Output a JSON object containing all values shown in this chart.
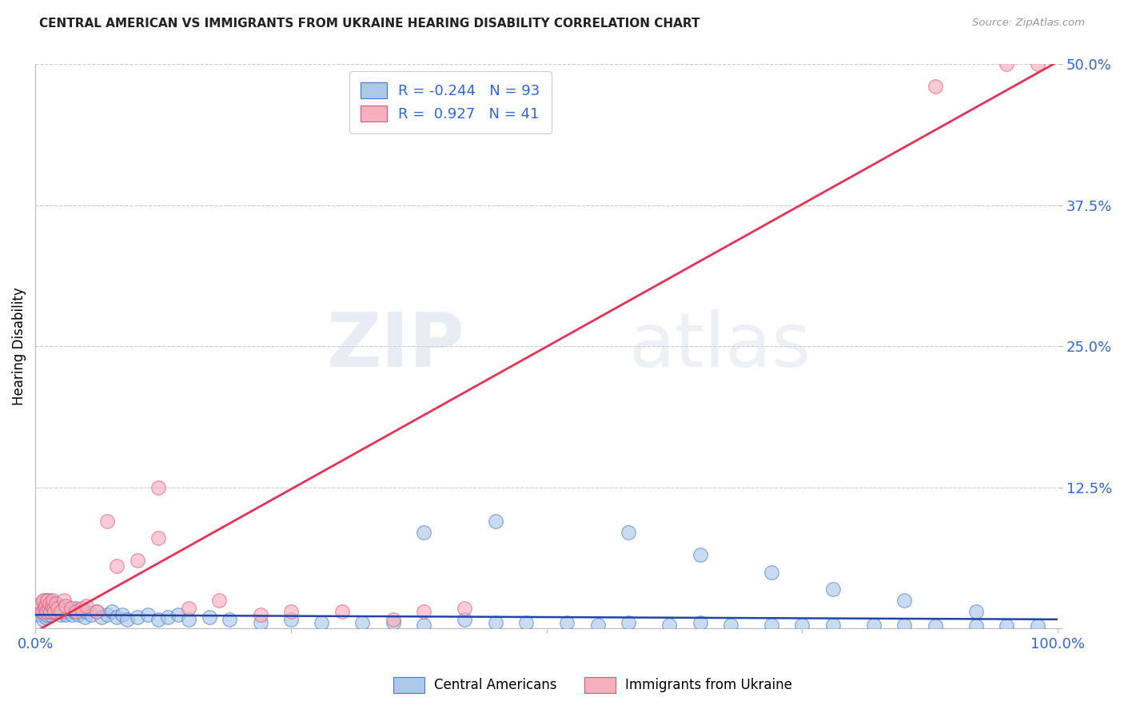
{
  "title": "CENTRAL AMERICAN VS IMMIGRANTS FROM UKRAINE HEARING DISABILITY CORRELATION CHART",
  "source": "Source: ZipAtlas.com",
  "ylabel": "Hearing Disability",
  "xlim": [
    0,
    1.0
  ],
  "ylim": [
    0,
    0.5
  ],
  "xticks": [
    0.0,
    0.25,
    0.5,
    0.75,
    1.0
  ],
  "xticklabels": [
    "0.0%",
    "",
    "",
    "",
    "100.0%"
  ],
  "yticks": [
    0.0,
    0.125,
    0.25,
    0.375,
    0.5
  ],
  "yticklabels": [
    "",
    "12.5%",
    "25.0%",
    "37.5%",
    "50.0%"
  ],
  "blue_R": -0.244,
  "blue_N": 93,
  "pink_R": 0.927,
  "pink_N": 41,
  "blue_color": "#adc8e8",
  "pink_color": "#f5b0c0",
  "blue_edge_color": "#4477cc",
  "pink_edge_color": "#e05575",
  "blue_line_color": "#2244aa",
  "pink_line_color": "#e03355",
  "legend_text_color": "#3366cc",
  "watermark_color": "#cdd8e8",
  "legend_label_blue": "Central Americans",
  "legend_label_pink": "Immigrants from Ukraine",
  "blue_line_slope": -0.004,
  "blue_line_intercept": 0.012,
  "pink_line_slope": 0.505,
  "pink_line_intercept": -0.003,
  "blue_points_x": [
    0.003,
    0.005,
    0.006,
    0.007,
    0.008,
    0.008,
    0.009,
    0.009,
    0.01,
    0.01,
    0.011,
    0.011,
    0.012,
    0.012,
    0.013,
    0.013,
    0.014,
    0.015,
    0.015,
    0.015,
    0.016,
    0.017,
    0.018,
    0.018,
    0.019,
    0.02,
    0.02,
    0.021,
    0.022,
    0.023,
    0.024,
    0.025,
    0.026,
    0.027,
    0.028,
    0.03,
    0.032,
    0.034,
    0.036,
    0.038,
    0.04,
    0.042,
    0.045,
    0.048,
    0.05,
    0.055,
    0.06,
    0.065,
    0.07,
    0.075,
    0.08,
    0.085,
    0.09,
    0.1,
    0.11,
    0.12,
    0.13,
    0.14,
    0.15,
    0.17,
    0.19,
    0.22,
    0.25,
    0.28,
    0.32,
    0.35,
    0.38,
    0.42,
    0.45,
    0.48,
    0.52,
    0.55,
    0.58,
    0.62,
    0.65,
    0.68,
    0.72,
    0.75,
    0.78,
    0.82,
    0.85,
    0.88,
    0.92,
    0.95,
    0.98,
    0.38,
    0.45,
    0.58,
    0.65,
    0.72,
    0.78,
    0.85,
    0.92
  ],
  "blue_points_y": [
    0.012,
    0.018,
    0.015,
    0.022,
    0.02,
    0.008,
    0.025,
    0.015,
    0.018,
    0.01,
    0.022,
    0.012,
    0.02,
    0.025,
    0.015,
    0.018,
    0.02,
    0.012,
    0.018,
    0.025,
    0.015,
    0.02,
    0.015,
    0.022,
    0.018,
    0.015,
    0.022,
    0.018,
    0.015,
    0.02,
    0.018,
    0.012,
    0.015,
    0.018,
    0.015,
    0.012,
    0.018,
    0.015,
    0.012,
    0.015,
    0.018,
    0.012,
    0.015,
    0.01,
    0.015,
    0.012,
    0.015,
    0.01,
    0.012,
    0.015,
    0.01,
    0.012,
    0.008,
    0.01,
    0.012,
    0.008,
    0.01,
    0.012,
    0.008,
    0.01,
    0.008,
    0.005,
    0.008,
    0.005,
    0.005,
    0.005,
    0.003,
    0.008,
    0.005,
    0.005,
    0.005,
    0.003,
    0.005,
    0.003,
    0.005,
    0.003,
    0.003,
    0.003,
    0.003,
    0.003,
    0.003,
    0.002,
    0.002,
    0.002,
    0.002,
    0.085,
    0.095,
    0.085,
    0.065,
    0.05,
    0.035,
    0.025,
    0.015
  ],
  "pink_points_x": [
    0.003,
    0.005,
    0.007,
    0.008,
    0.009,
    0.01,
    0.011,
    0.012,
    0.013,
    0.014,
    0.015,
    0.016,
    0.017,
    0.018,
    0.019,
    0.02,
    0.022,
    0.025,
    0.028,
    0.03,
    0.035,
    0.04,
    0.045,
    0.05,
    0.06,
    0.07,
    0.08,
    0.1,
    0.12,
    0.15,
    0.18,
    0.22,
    0.25,
    0.3,
    0.35,
    0.38,
    0.42,
    0.12,
    0.88,
    0.95,
    0.98
  ],
  "pink_points_y": [
    0.018,
    0.022,
    0.015,
    0.025,
    0.018,
    0.02,
    0.015,
    0.025,
    0.018,
    0.022,
    0.015,
    0.02,
    0.025,
    0.018,
    0.015,
    0.022,
    0.018,
    0.015,
    0.025,
    0.02,
    0.018,
    0.015,
    0.018,
    0.02,
    0.015,
    0.095,
    0.055,
    0.06,
    0.08,
    0.018,
    0.025,
    0.012,
    0.015,
    0.015,
    0.008,
    0.015,
    0.018,
    0.125,
    0.48,
    0.5,
    0.5
  ]
}
